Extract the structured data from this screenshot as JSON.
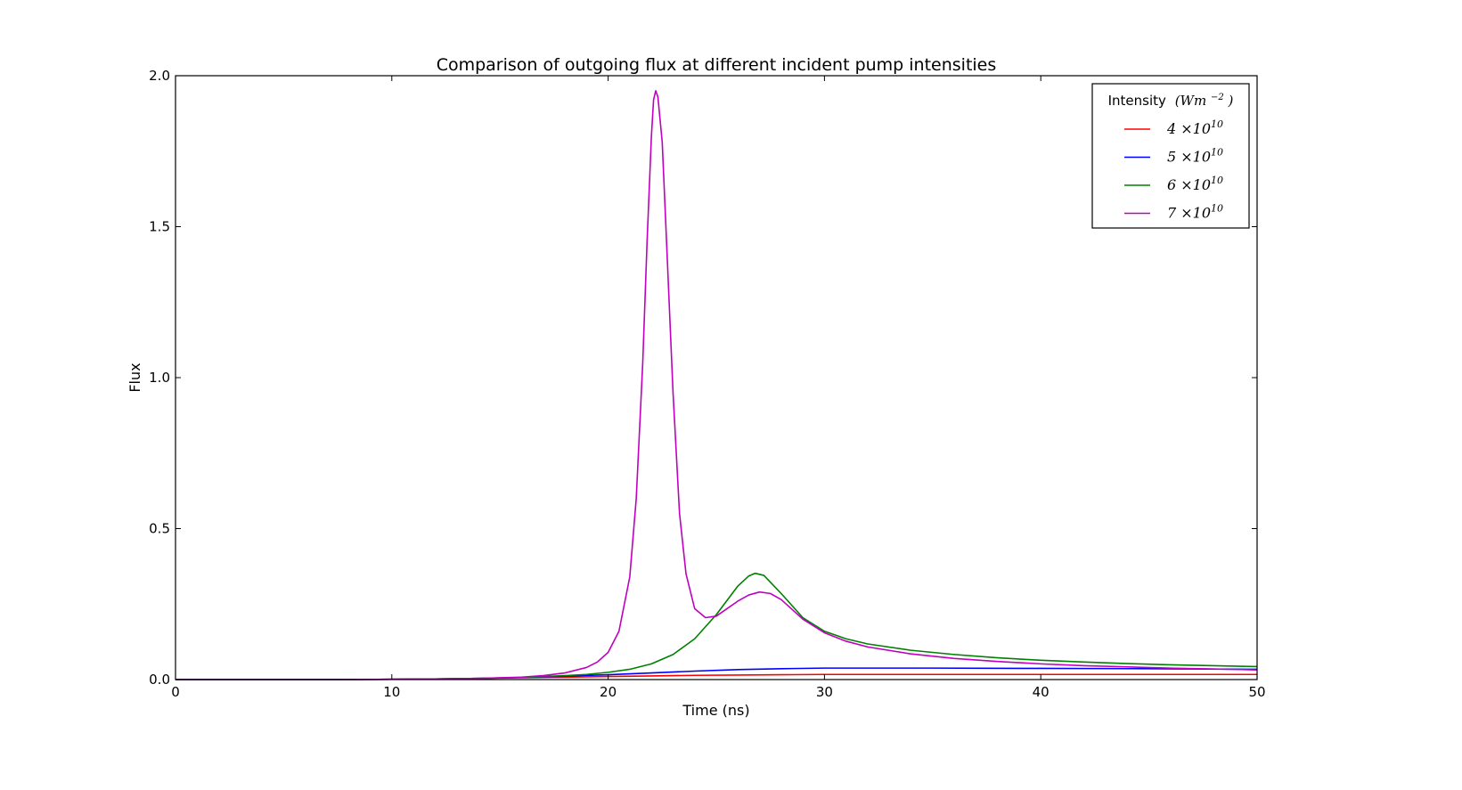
{
  "chart_data": {
    "type": "line",
    "title": "Comparison of outgoing flux at different incident pump intensities",
    "xlabel": "Time (ns)",
    "ylabel": "Flux",
    "xlim": [
      0,
      50
    ],
    "ylim": [
      0,
      2.0
    ],
    "xticks": [
      0,
      10,
      20,
      30,
      40,
      50
    ],
    "xtick_labels": [
      "0",
      "10",
      "20",
      "30",
      "40",
      "50"
    ],
    "yticks": [
      0.0,
      0.5,
      1.0,
      1.5,
      2.0
    ],
    "ytick_labels": [
      "0.0",
      "0.5",
      "1.0",
      "1.5",
      "2.0"
    ],
    "grid": false,
    "legend": {
      "placement": "top-right",
      "title_text": "Intensity",
      "title_math": "(Wm",
      "title_math_sup": "−2",
      "title_math_close": ")"
    },
    "series": [
      {
        "name": "4 ×10^10",
        "label_base": "4 ×10",
        "label_exp": "10",
        "color": "#ff0000",
        "points": [
          [
            0,
            0
          ],
          [
            8,
            0
          ],
          [
            10,
            0.001
          ],
          [
            12,
            0.002
          ],
          [
            14,
            0.004
          ],
          [
            16,
            0.006
          ],
          [
            18,
            0.008
          ],
          [
            20,
            0.01
          ],
          [
            22,
            0.012
          ],
          [
            24,
            0.014
          ],
          [
            26,
            0.015
          ],
          [
            28,
            0.016
          ],
          [
            30,
            0.017
          ],
          [
            35,
            0.017
          ],
          [
            40,
            0.017
          ],
          [
            45,
            0.017
          ],
          [
            50,
            0.017
          ]
        ]
      },
      {
        "name": "5 ×10^10",
        "label_base": "5 ×10",
        "label_exp": "10",
        "color": "#0000ff",
        "points": [
          [
            0,
            0
          ],
          [
            8,
            0
          ],
          [
            10,
            0.001
          ],
          [
            12,
            0.002
          ],
          [
            14,
            0.004
          ],
          [
            16,
            0.007
          ],
          [
            18,
            0.011
          ],
          [
            20,
            0.016
          ],
          [
            22,
            0.022
          ],
          [
            24,
            0.028
          ],
          [
            26,
            0.033
          ],
          [
            28,
            0.036
          ],
          [
            30,
            0.038
          ],
          [
            32,
            0.038
          ],
          [
            35,
            0.038
          ],
          [
            40,
            0.037
          ],
          [
            45,
            0.036
          ],
          [
            50,
            0.034
          ]
        ]
      },
      {
        "name": "6 ×10^10",
        "label_base": "6 ×10",
        "label_exp": "10",
        "color": "#008000",
        "points": [
          [
            0,
            0
          ],
          [
            8,
            0
          ],
          [
            10,
            0.001
          ],
          [
            12,
            0.002
          ],
          [
            14,
            0.004
          ],
          [
            16,
            0.007
          ],
          [
            18,
            0.013
          ],
          [
            19,
            0.017
          ],
          [
            20,
            0.024
          ],
          [
            21,
            0.034
          ],
          [
            22,
            0.052
          ],
          [
            23,
            0.083
          ],
          [
            24,
            0.135
          ],
          [
            25,
            0.215
          ],
          [
            26,
            0.31
          ],
          [
            26.5,
            0.343
          ],
          [
            26.8,
            0.352
          ],
          [
            27.2,
            0.345
          ],
          [
            28,
            0.285
          ],
          [
            29,
            0.205
          ],
          [
            30,
            0.16
          ],
          [
            31,
            0.135
          ],
          [
            32,
            0.118
          ],
          [
            34,
            0.097
          ],
          [
            36,
            0.083
          ],
          [
            38,
            0.072
          ],
          [
            40,
            0.064
          ],
          [
            42,
            0.058
          ],
          [
            44,
            0.053
          ],
          [
            46,
            0.049
          ],
          [
            48,
            0.046
          ],
          [
            50,
            0.043
          ]
        ]
      },
      {
        "name": "7 ×10^10",
        "label_base": "7 ×10",
        "label_exp": "10",
        "color": "#bf00bf",
        "points": [
          [
            0,
            0
          ],
          [
            8,
            0
          ],
          [
            10,
            0.001
          ],
          [
            12,
            0.002
          ],
          [
            14,
            0.004
          ],
          [
            16,
            0.008
          ],
          [
            17,
            0.013
          ],
          [
            18,
            0.022
          ],
          [
            19,
            0.04
          ],
          [
            19.5,
            0.058
          ],
          [
            20,
            0.09
          ],
          [
            20.5,
            0.16
          ],
          [
            21,
            0.34
          ],
          [
            21.3,
            0.6
          ],
          [
            21.6,
            1.05
          ],
          [
            21.8,
            1.45
          ],
          [
            22.0,
            1.8
          ],
          [
            22.1,
            1.92
          ],
          [
            22.2,
            1.95
          ],
          [
            22.3,
            1.93
          ],
          [
            22.5,
            1.78
          ],
          [
            22.7,
            1.45
          ],
          [
            23.0,
            0.95
          ],
          [
            23.3,
            0.55
          ],
          [
            23.6,
            0.35
          ],
          [
            24.0,
            0.235
          ],
          [
            24.5,
            0.205
          ],
          [
            25.0,
            0.21
          ],
          [
            25.5,
            0.235
          ],
          [
            26.0,
            0.26
          ],
          [
            26.5,
            0.28
          ],
          [
            27.0,
            0.29
          ],
          [
            27.5,
            0.285
          ],
          [
            28,
            0.265
          ],
          [
            29,
            0.2
          ],
          [
            30,
            0.155
          ],
          [
            31,
            0.127
          ],
          [
            32,
            0.108
          ],
          [
            34,
            0.085
          ],
          [
            36,
            0.07
          ],
          [
            38,
            0.06
          ],
          [
            40,
            0.052
          ],
          [
            42,
            0.046
          ],
          [
            44,
            0.042
          ],
          [
            46,
            0.038
          ],
          [
            48,
            0.035
          ],
          [
            50,
            0.032
          ]
        ]
      }
    ]
  }
}
